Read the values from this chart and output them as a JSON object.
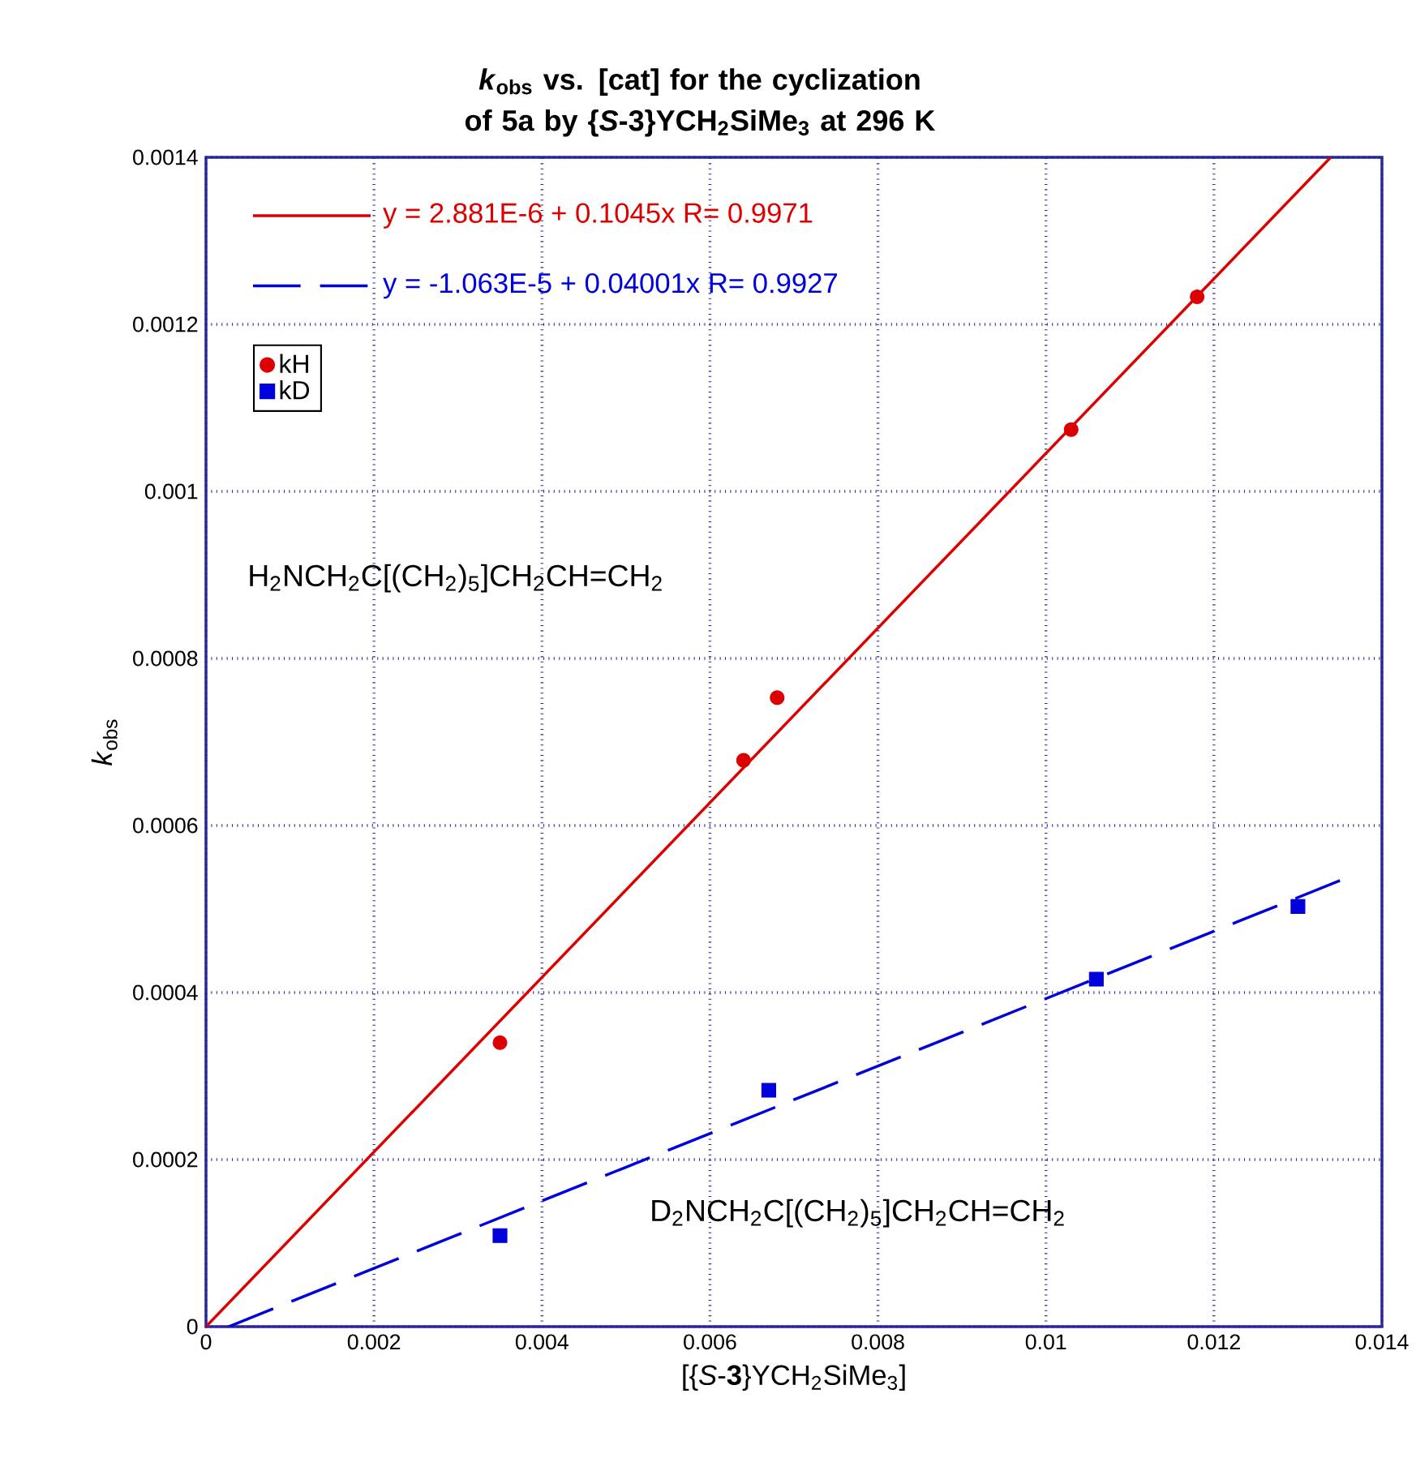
{
  "chart_data": {
    "type": "scatter",
    "title": "*k*$_{obs}$ vs. [cat] for the cyclization of 5a by {*S*-3}YCH$_{2}$SiMe$_{3}$ at 296 K",
    "xlabel": "[{*S*-**3**}YCH$_{2}$SiMe$_{3}$]",
    "ylabel": "*k*$_{obs}$",
    "series": [
      {
        "name": "kH",
        "marker": "circle",
        "color": "#dd0000",
        "x": [
          0.0035,
          0.0064,
          0.0068,
          0.0103,
          0.0118
        ],
        "values": [
          0.00034,
          0.000678,
          0.000753,
          0.001074,
          0.001233
        ]
      },
      {
        "name": "kD",
        "marker": "square",
        "color": "#0000dd",
        "x": [
          0.0035,
          0.0067,
          0.0106,
          0.013
        ],
        "values": [
          0.000109,
          0.000283,
          0.000416,
          0.000503
        ]
      },
      {
        "type": "line",
        "marker": "none",
        "line_style": "solid",
        "color": "#dd0000",
        "x": [
          0,
          0.01339
        ],
        "values": [
          0,
          0.0014
        ]
      },
      {
        "type": "line",
        "marker": "none",
        "line_style": "dashed",
        "color": "#0000dd",
        "x": [
          0.00027,
          0.0135
        ],
        "values": [
          0,
          0.000534
        ]
      }
    ],
    "annotations": [
      "y = 2.881E-6 + 0.1045x   R= 0.9971",
      "y = -1.063E-5 + 0.04001x   R= 0.9927",
      "H$_{2}$NCH$_{2}$C[(CH$_{2}$)$_{5}$]CH$_{2}$CH=CH$_{2}$",
      "D$_{2}$NCH$_{2}$C[(CH$_{2}$)$_{5}$]CH$_{2}$CH=CH$_{2}$"
    ],
    "xlim": [
      0,
      0.014
    ],
    "ylim": [
      0,
      0.0014
    ],
    "xticks": [
      0,
      0.002,
      0.004,
      0.006,
      0.008,
      0.01,
      0.012,
      0.014
    ],
    "yticks": [
      0,
      0.0002,
      0.0004,
      0.0006,
      0.0008,
      0.001,
      0.0012,
      0.0014
    ],
    "grid": true,
    "legend": "top left"
  }
}
